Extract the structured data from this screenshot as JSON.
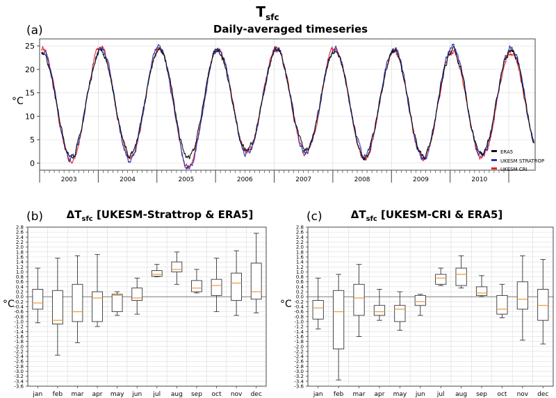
{
  "figure": {
    "title_main": "T",
    "title_sub": "sfc"
  },
  "colors": {
    "era5": "#111111",
    "stratrop": "#2433b8",
    "cri": "#e3262b",
    "median": "#f0a040",
    "grid": "#d4d4d4",
    "zero": "#7a7a7a"
  },
  "chart_data": [
    {
      "id": "a",
      "panel_label": "(a)",
      "type": "line",
      "title": "Daily-averaged timeseries",
      "ylabel": "°C",
      "xlabel": "",
      "ylim": [
        -1.5,
        26.5
      ],
      "yticks": [
        "0",
        "5",
        "10",
        "15",
        "20",
        "25"
      ],
      "xlim": [
        2002.5,
        2010.95
      ],
      "years": [
        "2003",
        "2004",
        "2005",
        "2006",
        "2007",
        "2008",
        "2009",
        "2010"
      ],
      "legend": {
        "placement": "lower-right",
        "entries": [
          "ERA5",
          "UKESM STRATROP",
          "UKESM CRI"
        ]
      },
      "series": [
        {
          "name": "ERA5",
          "key": "era5",
          "annual_min": [
            1.5,
            1.8,
            1.0,
            2.5,
            2.8,
            1.2,
            1.6,
            1.8
          ],
          "annual_max": [
            23.5,
            23.8,
            24.3,
            23.8,
            24.0,
            23.8,
            23.8,
            24.3
          ]
        },
        {
          "name": "UKESM STRATROP",
          "key": "stratrop",
          "annual_min": [
            1.0,
            0.8,
            -0.8,
            2.0,
            2.2,
            1.5,
            1.0,
            1.5
          ],
          "annual_max": [
            24.0,
            24.8,
            24.5,
            24.0,
            24.3,
            24.0,
            24.3,
            24.8
          ]
        },
        {
          "name": "UKESM CRI",
          "key": "cri",
          "annual_min": [
            0.7,
            1.2,
            -0.5,
            2.2,
            2.0,
            0.8,
            1.2,
            1.2
          ],
          "annual_max": [
            24.5,
            24.5,
            24.8,
            24.3,
            24.5,
            24.3,
            24.0,
            23.5
          ]
        }
      ]
    },
    {
      "id": "b",
      "panel_label": "(b)",
      "type": "box",
      "title_prefix": "ΔT",
      "title_sub": "sfc",
      "title_suffix": " [UKESM-Strattrop & ERA5]",
      "ylabel": "°C",
      "ylim": [
        -3.6,
        2.8
      ],
      "yticks": [
        "2.8",
        "2.6",
        "2.4",
        "2.2",
        "2.0",
        "1.8",
        "1.6",
        "1.4",
        "1.2",
        "1.0",
        "0.8",
        "0.6",
        "0.4",
        "0.2",
        "0.0",
        "-0.2",
        "-0.4",
        "-0.6",
        "-0.8",
        "-1.0",
        "-1.2",
        "-1.4",
        "-1.6",
        "-1.8",
        "-2.0",
        "-2.2",
        "-2.4",
        "-2.6",
        "-2.8",
        "-3.0",
        "-3.2",
        "-3.4",
        "-3.6"
      ],
      "categories": [
        "jan",
        "feb",
        "mar",
        "apr",
        "may",
        "jun",
        "jul",
        "aug",
        "sep",
        "oct",
        "nov",
        "dec"
      ],
      "boxes": [
        {
          "whislo": -1.05,
          "q1": -0.5,
          "med": -0.25,
          "q3": 0.3,
          "whishi": 1.15
        },
        {
          "whislo": -2.35,
          "q1": -1.1,
          "med": -0.95,
          "q3": 0.25,
          "whishi": 1.55
        },
        {
          "whislo": -1.85,
          "q1": -1.0,
          "med": -0.6,
          "q3": 0.5,
          "whishi": 1.65
        },
        {
          "whislo": -1.2,
          "q1": -1.0,
          "med": -0.05,
          "q3": 0.2,
          "whishi": 1.7
        },
        {
          "whislo": -0.75,
          "q1": -0.6,
          "med": 0.05,
          "q3": 0.1,
          "whishi": 0.2
        },
        {
          "whislo": -0.7,
          "q1": -0.15,
          "med": -0.05,
          "q3": 0.35,
          "whishi": 0.75
        },
        {
          "whislo": 0.8,
          "q1": 0.82,
          "med": 0.9,
          "q3": 1.05,
          "whishi": 1.3
        },
        {
          "whislo": 0.5,
          "q1": 1.0,
          "med": 1.1,
          "q3": 1.4,
          "whishi": 1.8
        },
        {
          "whislo": 0.15,
          "q1": 0.2,
          "med": 0.35,
          "q3": 0.65,
          "whishi": 1.1
        },
        {
          "whislo": -0.6,
          "q1": 0.05,
          "med": 0.45,
          "q3": 0.7,
          "whishi": 1.55
        },
        {
          "whislo": -0.75,
          "q1": -0.15,
          "med": 0.55,
          "q3": 0.95,
          "whishi": 1.85
        },
        {
          "whislo": -0.65,
          "q1": -0.1,
          "med": 0.2,
          "q3": 1.35,
          "whishi": 2.55
        }
      ]
    },
    {
      "id": "c",
      "panel_label": "(c)",
      "type": "box",
      "title_prefix": "ΔT",
      "title_sub": "sfc",
      "title_suffix": " [UKESM-CRI & ERA5]",
      "ylabel": "°C",
      "ylim": [
        -3.6,
        2.8
      ],
      "yticks": [
        "2.8",
        "2.6",
        "2.4",
        "2.2",
        "2.0",
        "1.8",
        "1.6",
        "1.4",
        "1.2",
        "1.0",
        "0.8",
        "0.6",
        "0.4",
        "0.2",
        "0.0",
        "-0.2",
        "-0.4",
        "-0.6",
        "-0.8",
        "-1.0",
        "-1.2",
        "-1.4",
        "-1.6",
        "-1.8",
        "-2.0",
        "-2.2",
        "-2.4",
        "-2.6",
        "-2.8",
        "-3.0",
        "-3.2",
        "-3.4",
        "-3.6"
      ],
      "categories": [
        "jan",
        "feb",
        "mar",
        "apr",
        "may",
        "jun",
        "jul",
        "aug",
        "sep",
        "oct",
        "nov",
        "dec"
      ],
      "boxes": [
        {
          "whislo": -1.3,
          "q1": -0.9,
          "med": -0.45,
          "q3": -0.15,
          "whishi": 0.75
        },
        {
          "whislo": -3.35,
          "q1": -2.1,
          "med": -0.6,
          "q3": 0.25,
          "whishi": 0.9
        },
        {
          "whislo": -1.6,
          "q1": -0.75,
          "med": -0.05,
          "q3": 0.5,
          "whishi": 1.3
        },
        {
          "whislo": -0.95,
          "q1": -0.75,
          "med": -0.6,
          "q3": -0.35,
          "whishi": 0.3
        },
        {
          "whislo": -1.35,
          "q1": -1.0,
          "med": -0.5,
          "q3": -0.35,
          "whishi": 0.2
        },
        {
          "whislo": -0.75,
          "q1": -0.35,
          "med": -0.2,
          "q3": 0.05,
          "whishi": 0.1
        },
        {
          "whislo": 0.45,
          "q1": 0.5,
          "med": 0.75,
          "q3": 0.9,
          "whishi": 1.15
        },
        {
          "whislo": 0.35,
          "q1": 0.45,
          "med": 0.9,
          "q3": 1.15,
          "whishi": 1.65
        },
        {
          "whislo": 0.0,
          "q1": 0.05,
          "med": 0.15,
          "q3": 0.4,
          "whishi": 0.85
        },
        {
          "whislo": -0.85,
          "q1": -0.7,
          "med": -0.5,
          "q3": 0.05,
          "whishi": 0.5
        },
        {
          "whislo": -1.75,
          "q1": -0.5,
          "med": -0.1,
          "q3": 0.6,
          "whishi": 1.65
        },
        {
          "whislo": -1.9,
          "q1": -0.95,
          "med": -0.35,
          "q3": 0.3,
          "whishi": 1.5
        }
      ]
    }
  ]
}
